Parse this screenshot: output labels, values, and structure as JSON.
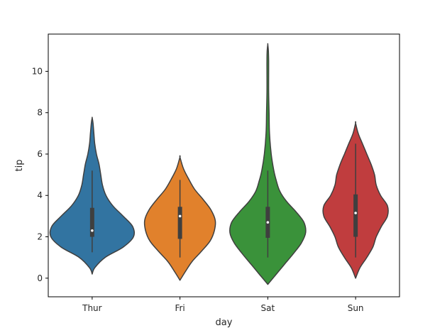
{
  "chart_data": {
    "type": "violin",
    "title": "",
    "xlabel": "day",
    "ylabel": "tip",
    "ylim": [
      -0.9,
      11.8
    ],
    "yticks": [
      0,
      2,
      4,
      6,
      8,
      10
    ],
    "grid": false,
    "legend": "none",
    "categories": [
      "Thur",
      "Fri",
      "Sat",
      "Sun"
    ],
    "series": [
      {
        "category": "Thur",
        "color": "#3274a1",
        "median": 2.3,
        "q1": 2.0,
        "q3": 3.4,
        "whisker_low": 1.25,
        "whisker_high": 5.2,
        "density_y": [
          0.2,
          0.5,
          1.0,
          1.5,
          2.0,
          2.5,
          3.0,
          3.5,
          4.0,
          4.5,
          5.0,
          5.5,
          6.0,
          6.5,
          7.0,
          7.5,
          7.75
        ],
        "density_w": [
          0.0,
          0.03,
          0.15,
          0.36,
          0.48,
          0.47,
          0.36,
          0.24,
          0.16,
          0.12,
          0.1,
          0.08,
          0.05,
          0.03,
          0.02,
          0.01,
          0.0
        ]
      },
      {
        "category": "Fri",
        "color": "#e1812c",
        "median": 3.0,
        "q1": 1.9,
        "q3": 3.45,
        "whisker_low": 1.0,
        "whisker_high": 4.75,
        "density_y": [
          -0.1,
          0.3,
          0.8,
          1.3,
          1.8,
          2.3,
          2.8,
          3.3,
          3.8,
          4.3,
          4.8,
          5.3,
          5.85
        ],
        "density_w": [
          0.0,
          0.06,
          0.14,
          0.25,
          0.35,
          0.4,
          0.41,
          0.36,
          0.27,
          0.17,
          0.1,
          0.04,
          0.0
        ]
      },
      {
        "category": "Sat",
        "color": "#3a923a",
        "median": 2.7,
        "q1": 1.95,
        "q3": 3.45,
        "whisker_low": 1.0,
        "whisker_high": 5.2,
        "density_y": [
          -0.3,
          0.2,
          0.7,
          1.2,
          1.7,
          2.2,
          2.7,
          3.2,
          3.7,
          4.2,
          4.7,
          5.2,
          6.0,
          7.0,
          8.0,
          9.0,
          10.0,
          10.5,
          11.0,
          11.3
        ],
        "density_w": [
          0.0,
          0.1,
          0.2,
          0.3,
          0.39,
          0.44,
          0.42,
          0.33,
          0.22,
          0.14,
          0.1,
          0.07,
          0.04,
          0.02,
          0.015,
          0.01,
          0.01,
          0.01,
          0.007,
          0.0
        ]
      },
      {
        "category": "Sun",
        "color": "#c03d3e",
        "median": 3.15,
        "q1": 2.0,
        "q3": 4.05,
        "whisker_low": 1.0,
        "whisker_high": 6.5,
        "density_y": [
          0.0,
          0.5,
          1.0,
          1.5,
          2.0,
          2.5,
          3.0,
          3.5,
          4.0,
          4.5,
          5.0,
          5.5,
          6.0,
          6.5,
          7.0,
          7.5
        ],
        "density_w": [
          0.0,
          0.05,
          0.13,
          0.2,
          0.24,
          0.3,
          0.37,
          0.37,
          0.29,
          0.24,
          0.22,
          0.18,
          0.13,
          0.08,
          0.03,
          0.0
        ]
      }
    ]
  }
}
